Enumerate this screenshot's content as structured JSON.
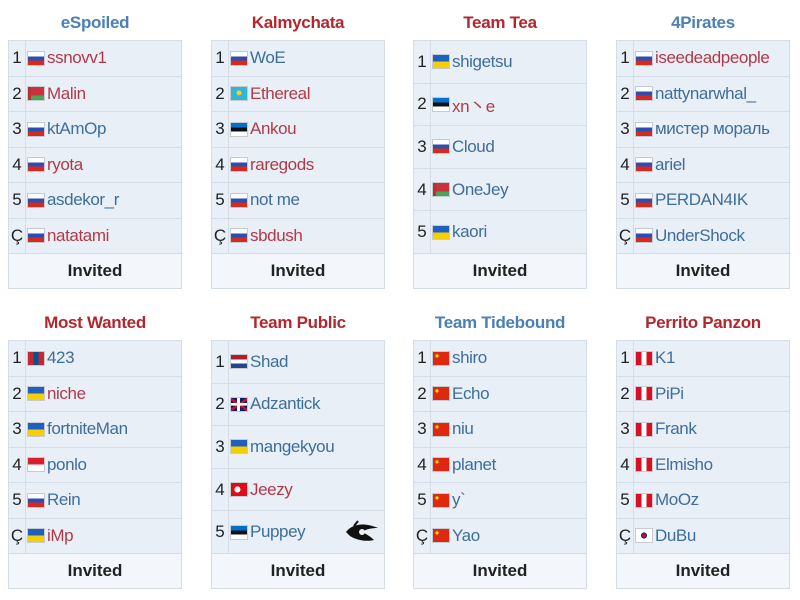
{
  "colors": {
    "blue": "#3d6e9c",
    "red": "#b23a48",
    "title_blue": "#4a80b4",
    "title_red": "#b3262e"
  },
  "teams": [
    {
      "name": "eSpoiled",
      "title_color": "blue",
      "footer": "Invited",
      "players": [
        {
          "rank": "1",
          "name": "ssnovv1",
          "flag": "ru",
          "color": "red"
        },
        {
          "rank": "2",
          "name": "Malin",
          "flag": "by",
          "color": "red"
        },
        {
          "rank": "3",
          "name": "ktAmOp",
          "flag": "ru",
          "color": "blue"
        },
        {
          "rank": "4",
          "name": "ryota",
          "flag": "ru",
          "color": "red"
        },
        {
          "rank": "5",
          "name": "asdekor_r",
          "flag": "ru",
          "color": "blue"
        },
        {
          "rank": "Ç",
          "name": "natatami",
          "flag": "ru",
          "color": "red"
        }
      ]
    },
    {
      "name": "Kalmychata",
      "title_color": "red",
      "footer": "Invited",
      "players": [
        {
          "rank": "1",
          "name": "WoE",
          "flag": "ru",
          "color": "blue"
        },
        {
          "rank": "2",
          "name": "Ethereal",
          "flag": "kz",
          "color": "red"
        },
        {
          "rank": "3",
          "name": "Ankou",
          "flag": "ee",
          "color": "red"
        },
        {
          "rank": "4",
          "name": "raregods",
          "flag": "ru",
          "color": "red"
        },
        {
          "rank": "5",
          "name": "not me",
          "flag": "ru",
          "color": "blue"
        },
        {
          "rank": "Ç",
          "name": "sbdush",
          "flag": "ru",
          "color": "red"
        }
      ]
    },
    {
      "name": "Team Tea",
      "title_color": "red",
      "footer": "Invited",
      "players": [
        {
          "rank": "1",
          "name": "shigetsu",
          "flag": "ua",
          "color": "blue"
        },
        {
          "rank": "2",
          "name": "xn丶e",
          "flag": "ee",
          "color": "red"
        },
        {
          "rank": "3",
          "name": "Cloud",
          "flag": "ru",
          "color": "blue"
        },
        {
          "rank": "4",
          "name": "OneJey",
          "flag": "by",
          "color": "blue"
        },
        {
          "rank": "5",
          "name": "kaori",
          "flag": "ua",
          "color": "blue"
        }
      ]
    },
    {
      "name": "4Pirates",
      "title_color": "blue",
      "footer": "Invited",
      "players": [
        {
          "rank": "1",
          "name": "iseedeadpeople",
          "flag": "ru",
          "color": "red"
        },
        {
          "rank": "2",
          "name": "nattynarwhal_",
          "flag": "ru",
          "color": "blue"
        },
        {
          "rank": "3",
          "name": "мистер мораль",
          "flag": "ru",
          "color": "blue"
        },
        {
          "rank": "4",
          "name": "ariel",
          "flag": "ru",
          "color": "blue"
        },
        {
          "rank": "5",
          "name": "PERDAN4IK",
          "flag": "ru",
          "color": "blue"
        },
        {
          "rank": "Ç",
          "name": "UnderShock",
          "flag": "ru",
          "color": "blue"
        }
      ]
    },
    {
      "name": "Most Wanted",
      "title_color": "red",
      "footer": "Invited",
      "players": [
        {
          "rank": "1",
          "name": "423",
          "flag": "mn",
          "color": "blue"
        },
        {
          "rank": "2",
          "name": "niche",
          "flag": "ua",
          "color": "red"
        },
        {
          "rank": "3",
          "name": "fortniteMan",
          "flag": "ua",
          "color": "blue"
        },
        {
          "rank": "4",
          "name": "ponlo",
          "flag": "id",
          "color": "blue"
        },
        {
          "rank": "5",
          "name": "Rein",
          "flag": "ru",
          "color": "blue"
        },
        {
          "rank": "Ç",
          "name": "iMp",
          "flag": "ua",
          "color": "red"
        }
      ]
    },
    {
      "name": "Team Public",
      "title_color": "red",
      "footer": "Invited",
      "logo": "team-secret-logo",
      "players": [
        {
          "rank": "1",
          "name": "Shad",
          "flag": "nl",
          "color": "blue"
        },
        {
          "rank": "2",
          "name": "Adzantick",
          "flag": "gb",
          "color": "blue"
        },
        {
          "rank": "3",
          "name": "mangekyou",
          "flag": "ua",
          "color": "blue"
        },
        {
          "rank": "4",
          "name": "Jeezy",
          "flag": "tr",
          "color": "red"
        },
        {
          "rank": "5",
          "name": "Puppey",
          "flag": "ee",
          "color": "blue"
        }
      ]
    },
    {
      "name": "Team Tidebound",
      "title_color": "blue",
      "footer": "Invited",
      "players": [
        {
          "rank": "1",
          "name": "shiro",
          "flag": "cn",
          "color": "blue"
        },
        {
          "rank": "2",
          "name": "Echo",
          "flag": "cn",
          "color": "blue"
        },
        {
          "rank": "3",
          "name": "niu",
          "flag": "cn",
          "color": "blue"
        },
        {
          "rank": "4",
          "name": "planet",
          "flag": "cn",
          "color": "blue"
        },
        {
          "rank": "5",
          "name": "y`",
          "flag": "cn",
          "color": "blue"
        },
        {
          "rank": "Ç",
          "name": "Yao",
          "flag": "cn",
          "color": "blue"
        }
      ]
    },
    {
      "name": "Perrito Panzon",
      "title_color": "red",
      "footer": "Invited",
      "players": [
        {
          "rank": "1",
          "name": "K1",
          "flag": "pe",
          "color": "blue"
        },
        {
          "rank": "2",
          "name": "PiPi",
          "flag": "pe",
          "color": "blue"
        },
        {
          "rank": "3",
          "name": "Frank",
          "flag": "pe",
          "color": "blue"
        },
        {
          "rank": "4",
          "name": "Elmisho",
          "flag": "pe",
          "color": "blue"
        },
        {
          "rank": "5",
          "name": "MoOz",
          "flag": "pe",
          "color": "blue"
        },
        {
          "rank": "Ç",
          "name": "DuBu",
          "flag": "kr",
          "color": "blue"
        }
      ]
    }
  ]
}
